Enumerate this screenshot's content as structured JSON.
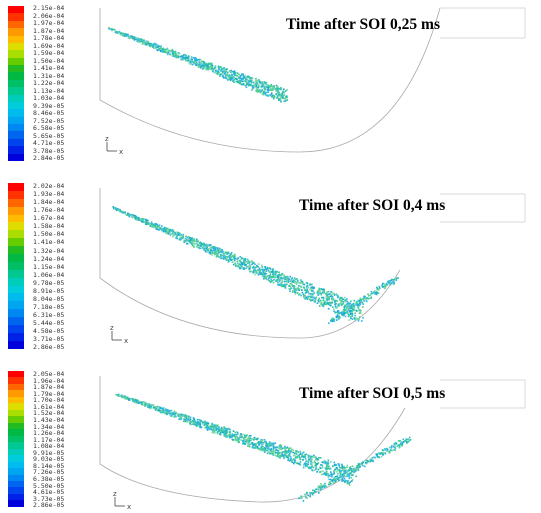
{
  "panels": [
    {
      "title": "Time after SOI 0,25 ms",
      "legend_labels": [
        "2.15e-04",
        "2.06e-04",
        "1.97e-04",
        "1.87e-04",
        "1.78e-04",
        "1.69e-04",
        "1.59e-04",
        "1.50e-04",
        "1.41e-04",
        "1.31e-04",
        "1.22e-04",
        "1.13e-04",
        "1.03e-04",
        "9.39e-05",
        "8.46e-05",
        "7.52e-05",
        "6.58e-05",
        "5.65e-05",
        "4.71e-05",
        "3.78e-05",
        "2.84e-05"
      ],
      "axis_labels": {
        "x": "x",
        "z": "z"
      }
    },
    {
      "title": "Time after SOI 0,4 ms",
      "legend_labels": [
        "2.02e-04",
        "1.93e-04",
        "1.84e-04",
        "1.76e-04",
        "1.67e-04",
        "1.58e-04",
        "1.50e-04",
        "1.41e-04",
        "1.32e-04",
        "1.24e-04",
        "1.15e-04",
        "1.06e-04",
        "9.78e-05",
        "8.91e-05",
        "8.04e-05",
        "7.18e-05",
        "6.31e-05",
        "5.44e-05",
        "4.58e-05",
        "3.71e-05",
        "2.86e-05"
      ],
      "axis_labels": {
        "x": "x",
        "z": "z"
      }
    },
    {
      "title": "Time after SOI 0,5 ms",
      "legend_labels": [
        "2.05e-04",
        "1.96e-04",
        "1.87e-04",
        "1.79e-04",
        "1.70e-04",
        "1.61e-04",
        "1.52e-04",
        "1.43e-04",
        "1.34e-04",
        "1.26e-04",
        "1.17e-04",
        "1.08e-04",
        "9.91e-05",
        "9.03e-05",
        "8.14e-05",
        "7.26e-05",
        "6.38e-05",
        "5.50e-05",
        "4.61e-05",
        "3.73e-05",
        "2.86e-05"
      ],
      "axis_labels": {
        "x": "x",
        "z": "z"
      }
    }
  ],
  "colormap": [
    "#ff0000",
    "#ff3300",
    "#ff6600",
    "#ff9900",
    "#ffbb00",
    "#dddd00",
    "#aadd00",
    "#66cc00",
    "#22bb22",
    "#00b844",
    "#00c066",
    "#00c890",
    "#00ccbb",
    "#00ccdd",
    "#00bbee",
    "#00a5f2",
    "#0088f2",
    "#0066f0",
    "#0044ee",
    "#0022e8",
    "#0000dd"
  ],
  "outline_color": "#aaaaaa",
  "spray_colors": [
    "#2ec4a6",
    "#33b6e8",
    "#4fd08a",
    "#7fd6a8",
    "#1aa9d6"
  ]
}
